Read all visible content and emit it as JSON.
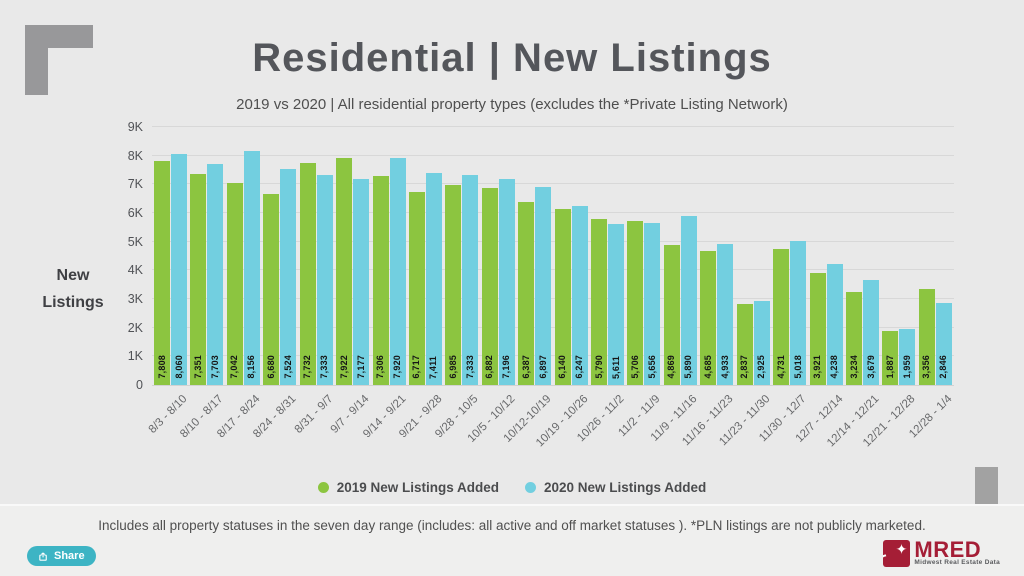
{
  "page": {
    "title": "Residential | New Listings",
    "subtitle": "2019 vs 2020 | All residential property types (excludes the *Private Listing Network)",
    "footnote": "Includes all property statuses in the seven day range (includes:  all active and off market statuses ).  *PLN listings are not publicly marketed.",
    "share_label": "Share"
  },
  "logo": {
    "name": "MRED",
    "tagline": "Midwest Real Estate Data"
  },
  "colors": {
    "background": "#e9e9e9",
    "series_2019_green": "#8cc540",
    "series_2020_blue": "#72cfe0",
    "brand_red": "#a51e36",
    "share_teal": "#3db4c4"
  },
  "chart_data": {
    "type": "bar",
    "title": "Residential | New Listings",
    "subtitle": "2019 vs 2020 | All residential property types (excludes the *Private Listing Network)",
    "ylabel": "New\nListings",
    "xlabel": "",
    "ylim": [
      0,
      9000
    ],
    "ytick_step": 1000,
    "ytick_labels": [
      "0",
      "1K",
      "2K",
      "3K",
      "4K",
      "5K",
      "6K",
      "7K",
      "8K",
      "9K"
    ],
    "grid": true,
    "legend_position": "bottom",
    "categories": [
      "8/3 - 8/10",
      "8/10 - 8/17",
      "8/17 - 8/24",
      "8/24 - 8/31",
      "8/31 - 9/7",
      "9/7 - 9/14",
      "9/14 - 9/21",
      "9/21 - 9/28",
      "9/28 - 10/5",
      "10/5 - 10/12",
      "10/12-10/19",
      "10/19 - 10/26",
      "10/26 - 11/2",
      "11/2 - 11/9",
      "11/9 - 11/16",
      "11/16 - 11/23",
      "11/23 - 11/30",
      "11/30 - 12/7",
      "12/7 - 12/14",
      "12/14 - 12/21",
      "12/21 - 12/28",
      "12/28 - 1/4"
    ],
    "series": [
      {
        "name": "2019 New Listings Added",
        "color": "#8cc540",
        "values": [
          7808,
          7351,
          7042,
          6680,
          7732,
          7922,
          7306,
          6717,
          6985,
          6882,
          6387,
          6140,
          5790,
          5706,
          4869,
          4685,
          2837,
          4731,
          3921,
          3234,
          1887,
          3356
        ]
      },
      {
        "name": "2020 New Listings Added",
        "color": "#72cfe0",
        "values": [
          8060,
          7703,
          8156,
          7524,
          7333,
          7177,
          7920,
          7411,
          7333,
          7196,
          6897,
          6247,
          5611,
          5656,
          5890,
          4933,
          2925,
          5018,
          4238,
          3679,
          1959,
          2846
        ]
      }
    ]
  }
}
